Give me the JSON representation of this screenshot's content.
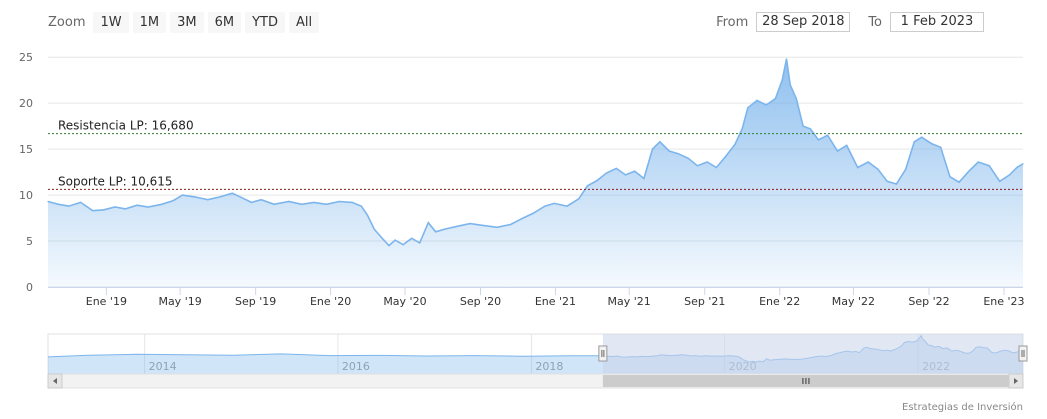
{
  "toolbar": {
    "zoom_label": "Zoom",
    "zoom_buttons": [
      "1W",
      "1M",
      "3M",
      "6M",
      "YTD",
      "All"
    ],
    "from_label": "From",
    "from_value": "28 Sep 2018",
    "to_label": "To",
    "to_value": "1 Feb 2023"
  },
  "credit": "Estrategias de Inversión",
  "colors": {
    "series_line": "#7cb5ec",
    "resistance_line": "#2e7d32",
    "support_line": "#8b1a1a",
    "navigator_mask": "#c9d3ea"
  },
  "chart_data": {
    "type": "area",
    "y_ticks": [
      0,
      5,
      10,
      15,
      20,
      25
    ],
    "y_range": [
      0,
      26
    ],
    "x_range": [
      "2018-09-28",
      "2023-02-01"
    ],
    "x_tick_labels": [
      {
        "date": "2019-01-01",
        "label": "Ene '19"
      },
      {
        "date": "2019-05-01",
        "label": "May '19"
      },
      {
        "date": "2019-09-01",
        "label": "Sep '19"
      },
      {
        "date": "2020-01-01",
        "label": "Ene '20"
      },
      {
        "date": "2020-05-01",
        "label": "May '20"
      },
      {
        "date": "2020-09-01",
        "label": "Sep '20"
      },
      {
        "date": "2021-01-01",
        "label": "Ene '21"
      },
      {
        "date": "2021-05-01",
        "label": "May '21"
      },
      {
        "date": "2021-09-01",
        "label": "Sep '21"
      },
      {
        "date": "2022-01-01",
        "label": "Ene '22"
      },
      {
        "date": "2022-05-01",
        "label": "May '22"
      },
      {
        "date": "2022-09-01",
        "label": "Sep '22"
      },
      {
        "date": "2023-01-01",
        "label": "Ene '23"
      }
    ],
    "plot_lines": [
      {
        "label": "Resistencia LP: 16,680",
        "value": 16.68,
        "color": "#2e7d32"
      },
      {
        "label": "Soporte LP: 10,615",
        "value": 10.615,
        "color": "#8b1a1a"
      }
    ],
    "series": [
      {
        "points": [
          [
            "2018-09-28",
            9.3
          ],
          [
            "2018-10-15",
            9.0
          ],
          [
            "2018-11-01",
            8.8
          ],
          [
            "2018-11-20",
            9.2
          ],
          [
            "2018-12-10",
            8.3
          ],
          [
            "2018-12-28",
            8.4
          ],
          [
            "2019-01-15",
            8.7
          ],
          [
            "2019-02-01",
            8.5
          ],
          [
            "2019-02-20",
            8.9
          ],
          [
            "2019-03-10",
            8.7
          ],
          [
            "2019-04-01",
            9.0
          ],
          [
            "2019-04-20",
            9.4
          ],
          [
            "2019-05-05",
            10.0
          ],
          [
            "2019-05-25",
            9.8
          ],
          [
            "2019-06-15",
            9.5
          ],
          [
            "2019-07-05",
            9.8
          ],
          [
            "2019-07-25",
            10.2
          ],
          [
            "2019-08-10",
            9.7
          ],
          [
            "2019-08-25",
            9.2
          ],
          [
            "2019-09-10",
            9.5
          ],
          [
            "2019-10-01",
            9.0
          ],
          [
            "2019-10-25",
            9.3
          ],
          [
            "2019-11-15",
            9.0
          ],
          [
            "2019-12-05",
            9.2
          ],
          [
            "2019-12-25",
            9.0
          ],
          [
            "2020-01-15",
            9.3
          ],
          [
            "2020-02-05",
            9.2
          ],
          [
            "2020-02-20",
            8.8
          ],
          [
            "2020-03-01",
            7.8
          ],
          [
            "2020-03-12",
            6.3
          ],
          [
            "2020-03-25",
            5.3
          ],
          [
            "2020-04-05",
            4.5
          ],
          [
            "2020-04-15",
            5.1
          ],
          [
            "2020-04-28",
            4.6
          ],
          [
            "2020-05-12",
            5.3
          ],
          [
            "2020-05-25",
            4.8
          ],
          [
            "2020-06-08",
            7.0
          ],
          [
            "2020-06-20",
            6.0
          ],
          [
            "2020-07-05",
            6.3
          ],
          [
            "2020-07-25",
            6.6
          ],
          [
            "2020-08-15",
            6.9
          ],
          [
            "2020-09-05",
            6.7
          ],
          [
            "2020-09-28",
            6.5
          ],
          [
            "2020-10-20",
            6.8
          ],
          [
            "2020-11-09",
            7.5
          ],
          [
            "2020-11-25",
            8.0
          ],
          [
            "2020-12-15",
            8.8
          ],
          [
            "2020-12-30",
            9.1
          ],
          [
            "2021-01-20",
            8.8
          ],
          [
            "2021-02-08",
            9.6
          ],
          [
            "2021-02-22",
            11.0
          ],
          [
            "2021-03-10",
            11.6
          ],
          [
            "2021-03-25",
            12.4
          ],
          [
            "2021-04-10",
            12.9
          ],
          [
            "2021-04-25",
            12.2
          ],
          [
            "2021-05-10",
            12.6
          ],
          [
            "2021-05-25",
            11.8
          ],
          [
            "2021-06-08",
            15.0
          ],
          [
            "2021-06-20",
            15.8
          ],
          [
            "2021-07-05",
            14.8
          ],
          [
            "2021-07-20",
            14.5
          ],
          [
            "2021-08-05",
            14.0
          ],
          [
            "2021-08-20",
            13.2
          ],
          [
            "2021-09-05",
            13.6
          ],
          [
            "2021-09-20",
            13.0
          ],
          [
            "2021-10-05",
            14.2
          ],
          [
            "2021-10-20",
            15.5
          ],
          [
            "2021-11-01",
            17.2
          ],
          [
            "2021-11-10",
            19.5
          ],
          [
            "2021-11-25",
            20.3
          ],
          [
            "2021-12-10",
            19.8
          ],
          [
            "2021-12-25",
            20.5
          ],
          [
            "2022-01-05",
            22.5
          ],
          [
            "2022-01-12",
            24.8
          ],
          [
            "2022-01-18",
            22.0
          ],
          [
            "2022-01-28",
            20.5
          ],
          [
            "2022-02-08",
            17.5
          ],
          [
            "2022-02-20",
            17.2
          ],
          [
            "2022-03-05",
            16.0
          ],
          [
            "2022-03-20",
            16.5
          ],
          [
            "2022-04-05",
            14.8
          ],
          [
            "2022-04-20",
            15.4
          ],
          [
            "2022-05-08",
            13.0
          ],
          [
            "2022-05-25",
            13.6
          ],
          [
            "2022-06-10",
            12.8
          ],
          [
            "2022-06-25",
            11.5
          ],
          [
            "2022-07-10",
            11.2
          ],
          [
            "2022-07-25",
            12.8
          ],
          [
            "2022-08-08",
            15.8
          ],
          [
            "2022-08-20",
            16.3
          ],
          [
            "2022-09-05",
            15.6
          ],
          [
            "2022-09-20",
            15.2
          ],
          [
            "2022-10-05",
            12.0
          ],
          [
            "2022-10-20",
            11.4
          ],
          [
            "2022-11-05",
            12.6
          ],
          [
            "2022-11-20",
            13.6
          ],
          [
            "2022-12-08",
            13.2
          ],
          [
            "2022-12-25",
            11.5
          ],
          [
            "2023-01-10",
            12.2
          ],
          [
            "2023-01-22",
            13.0
          ],
          [
            "2023-02-01",
            13.4
          ]
        ]
      }
    ],
    "navigator": {
      "x_range": [
        "2013-01-01",
        "2023-02-01"
      ],
      "tick_labels": [
        {
          "date": "2014-01-01",
          "label": "2014"
        },
        {
          "date": "2016-01-01",
          "label": "2016"
        },
        {
          "date": "2018-01-01",
          "label": "2018"
        },
        {
          "date": "2020-01-01",
          "label": "2020"
        },
        {
          "date": "2022-01-01",
          "label": "2022"
        }
      ],
      "selected_from": "2018-09-28",
      "selected_to": "2023-02-01",
      "history_points": [
        [
          "2013-01-01",
          8.5
        ],
        [
          "2013-06-01",
          9.8
        ],
        [
          "2013-12-01",
          10.5
        ],
        [
          "2014-06-01",
          10.2
        ],
        [
          "2014-12-01",
          9.8
        ],
        [
          "2015-06-01",
          10.8
        ],
        [
          "2015-12-01",
          9.5
        ],
        [
          "2016-06-01",
          9.6
        ],
        [
          "2016-12-01",
          9.2
        ],
        [
          "2017-06-01",
          9.5
        ],
        [
          "2017-12-01",
          9.0
        ],
        [
          "2018-06-01",
          9.4
        ],
        [
          "2018-09-28",
          9.3
        ]
      ]
    }
  }
}
